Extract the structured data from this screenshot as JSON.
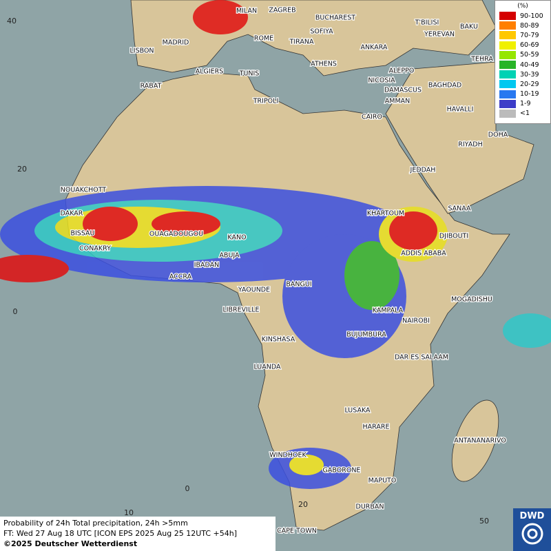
{
  "legend": {
    "title": "(%)",
    "items": [
      {
        "label": "90-100",
        "color": "#d40000"
      },
      {
        "label": "80-89",
        "color": "#ff7f00"
      },
      {
        "label": "70-79",
        "color": "#ffc800"
      },
      {
        "label": "60-69",
        "color": "#f0f000"
      },
      {
        "label": "50-59",
        "color": "#96e600"
      },
      {
        "label": "40-49",
        "color": "#28b428"
      },
      {
        "label": "30-39",
        "color": "#00d2b4"
      },
      {
        "label": "20-29",
        "color": "#00c8f0"
      },
      {
        "label": "10-19",
        "color": "#2878f0"
      },
      {
        "label": "1-9",
        "color": "#3c3cc8"
      },
      {
        "label": "<1",
        "color": "#bbbbbb"
      }
    ]
  },
  "grid_labels": [
    "40",
    "20",
    "0",
    "0",
    "10",
    "20",
    "50"
  ],
  "cities": [
    "MILAN",
    "ZAGREB",
    "BUCHAREST",
    "SOFIYA",
    "T'BILISI",
    "BAKU",
    "YEREVAN",
    "ROME",
    "TIRANA",
    "ANKARA",
    "MADRID",
    "LISBON",
    "TEHRA",
    "ATHENS",
    "ALGIERS",
    "TUNIS",
    "ALEPPO",
    "NICOSIA",
    "RABAT",
    "BAGHDAD",
    "DAMASCUS",
    "AMMAN",
    "TRIPOLI",
    "HAVALLI",
    "CAIRO",
    "DOHA",
    "RIYADH",
    "JEDDAH",
    "NOUAKCHOTT",
    "SANAA",
    "DAKAR",
    "KHARTOUM",
    "BISSAU",
    "OUAGADOUGOU",
    "KANO",
    "DJIBOUTI",
    "CONAKRY",
    "ABUJA",
    "ADDIS ABABA",
    "IBADAN",
    "ACCRA",
    "BANGUI",
    "YAOUNDE",
    "MOGADISHU",
    "LIBREVILLE",
    "KAMPALA",
    "NAIROBI",
    "BUJUMBURA",
    "KINSHASA",
    "DAR ES SALAAM",
    "LUANDA",
    "LUSAKA",
    "HARARE",
    "ANTANANARIVO",
    "WINDHOEK",
    "GABORONE",
    "MAPUTO",
    "DURBAN",
    "CAPE TOWN"
  ],
  "footer": [
    "Probability of 24h Total precipitation, 24h >5mm",
    "FT: Wed 27 Aug 18 UTC [ICON EPS 2025 Aug 25 12UTC +54h]",
    "©2025 Deutscher Wetterdienst"
  ],
  "logo": "DWD"
}
